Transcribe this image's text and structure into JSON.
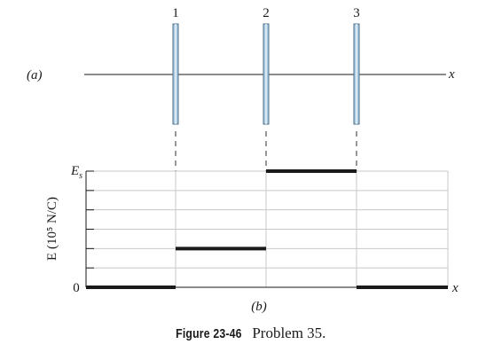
{
  "part_a": {
    "label": "(a)",
    "axis_label": "x",
    "sheets": [
      {
        "label": "1"
      },
      {
        "label": "2"
      },
      {
        "label": "3"
      }
    ]
  },
  "part_b": {
    "label": "(b)",
    "y_axis_label": "E (10⁵ N/C)",
    "y_top_label": "Es",
    "y_zero_label": "0",
    "x_axis_label": "x"
  },
  "chart_data": {
    "type": "line",
    "step": true,
    "xlabel": "x",
    "ylabel": "E (10^5 N/C)",
    "ytick_labels": [
      "0",
      "Es"
    ],
    "ylim": [
      0,
      6
    ],
    "grid": true,
    "series": [
      {
        "segments": [
          {
            "region": "left of sheet 1",
            "value": 0
          },
          {
            "region": "between sheets 1 and 2",
            "value": 2
          },
          {
            "region": "between sheets 2 and 3",
            "value": 6
          },
          {
            "region": "right of sheet 3",
            "value": 0
          }
        ]
      }
    ]
  },
  "caption": {
    "label": "Figure 23-46",
    "text": "Problem 35."
  },
  "colors": {
    "sheet_fill": "#a9cbe4",
    "sheet_edge": "#4f6f86",
    "grid": "#c8c8c8",
    "ink": "#1a1a1a"
  }
}
